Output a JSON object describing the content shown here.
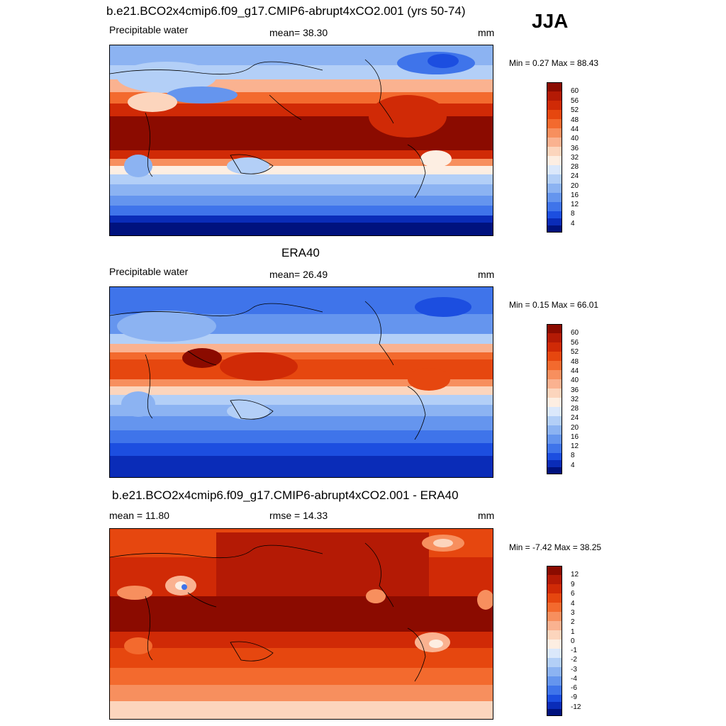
{
  "corner_label": "JJA",
  "panels": [
    {
      "title": "b.e21.BCO2x4cmip6.f09_g17.CMIP6-abrupt4xCO2.001 (yrs 50-74)",
      "left_label": "Precipitable water",
      "center_label": "mean=  38.30",
      "units": "mm",
      "minmax": "Min =   0.27 Max =  88.43",
      "ticks": [
        "60",
        "56",
        "52",
        "48",
        "44",
        "40",
        "36",
        "32",
        "28",
        "24",
        "20",
        "16",
        "12",
        "8",
        "4"
      ],
      "palette": [
        "#8b0b00",
        "#b41a05",
        "#d02a06",
        "#e6470f",
        "#f36a2e",
        "#f78f5e",
        "#fab290",
        "#fcd5bd",
        "#fdeee2",
        "#dbe8fb",
        "#b3cff7",
        "#8cb3f2",
        "#6595ee",
        "#3f74ea",
        "#1c4ee0",
        "#0a2cb8",
        "#00127e"
      ]
    },
    {
      "title": "ERA40",
      "left_label": "Precipitable water",
      "center_label": "mean=  26.49",
      "units": "mm",
      "minmax": "Min =   0.15 Max =  66.01",
      "ticks": [
        "60",
        "56",
        "52",
        "48",
        "44",
        "40",
        "36",
        "32",
        "28",
        "24",
        "20",
        "16",
        "12",
        "8",
        "4"
      ],
      "palette": [
        "#8b0b00",
        "#b41a05",
        "#d02a06",
        "#e6470f",
        "#f36a2e",
        "#f78f5e",
        "#fab290",
        "#fcd5bd",
        "#fdeee2",
        "#dbe8fb",
        "#b3cff7",
        "#8cb3f2",
        "#6595ee",
        "#3f74ea",
        "#1c4ee0",
        "#0a2cb8",
        "#00127e"
      ]
    },
    {
      "title": "b.e21.BCO2x4cmip6.f09_g17.CMIP6-abrupt4xCO2.001 - ERA40",
      "left_label": "mean =  11.80",
      "center_label": "rmse =  14.33",
      "units": "mm",
      "minmax": "Min =  -7.42 Max =  38.25",
      "ticks": [
        "12",
        "9",
        "6",
        "4",
        "3",
        "2",
        "1",
        "0",
        "-1",
        "-2",
        "-3",
        "-4",
        "-6",
        "-9",
        "-12"
      ],
      "palette": [
        "#8b0b00",
        "#b41a05",
        "#d02a06",
        "#e6470f",
        "#f36a2e",
        "#f78f5e",
        "#fab290",
        "#fcd5bd",
        "#fdeee2",
        "#dbe8fb",
        "#b3cff7",
        "#8cb3f2",
        "#6595ee",
        "#3f74ea",
        "#1c4ee0",
        "#0a2cb8",
        "#00127e"
      ]
    }
  ]
}
